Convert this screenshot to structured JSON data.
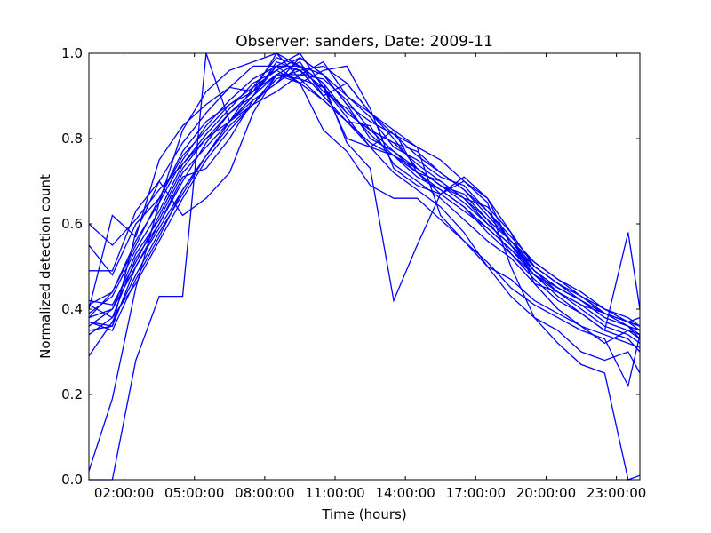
{
  "chart_data": {
    "type": "line",
    "title": "Observer: sanders, Date: 2009-11",
    "xlabel": "Time (hours)",
    "ylabel": "Normalized detection count",
    "xlim": [
      0.5,
      24
    ],
    "ylim": [
      0,
      1
    ],
    "x_ticks": [
      2,
      5,
      8,
      11,
      14,
      17,
      20,
      23
    ],
    "x_tick_labels": [
      "02:00:00",
      "05:00:00",
      "08:00:00",
      "11:00:00",
      "14:00:00",
      "17:00:00",
      "20:00:00",
      "23:00:00"
    ],
    "y_ticks": [
      0,
      0.2,
      0.4,
      0.6,
      0.8,
      1.0
    ],
    "y_tick_labels": [
      "0.0",
      "0.2",
      "0.4",
      "0.6",
      "0.8",
      "1.0"
    ],
    "grid": false,
    "legend": "none",
    "line_color": "#0000ff",
    "x": [
      0.5,
      1.5,
      2.5,
      3.5,
      4.5,
      5.5,
      6.5,
      7.5,
      8.5,
      9.5,
      10.5,
      11.5,
      12.5,
      13.5,
      14.5,
      15.5,
      16.5,
      17.5,
      18.5,
      19.5,
      20.5,
      21.5,
      22.5,
      23.5,
      24
    ],
    "series": [
      {
        "values": [
          0.0,
          0.0,
          0.28,
          0.43,
          0.43,
          1.0,
          0.84,
          0.88,
          0.95,
          0.98,
          0.9,
          0.93,
          0.86,
          0.82,
          0.72,
          0.7,
          0.66,
          0.64,
          0.58,
          0.46,
          0.4,
          0.36,
          0.32,
          0.35,
          0.34
        ]
      },
      {
        "values": [
          0.02,
          0.19,
          0.45,
          0.65,
          0.82,
          0.91,
          0.96,
          0.98,
          1.0,
          0.94,
          0.89,
          0.84,
          0.78,
          0.72,
          0.68,
          0.64,
          0.58,
          0.5,
          0.43,
          0.38,
          0.32,
          0.27,
          0.25,
          0.0,
          0.01
        ]
      },
      {
        "values": [
          0.4,
          0.62,
          0.57,
          0.75,
          0.83,
          0.88,
          0.92,
          0.97,
          0.97,
          1.0,
          0.92,
          0.8,
          0.78,
          0.76,
          0.73,
          0.69,
          0.67,
          0.61,
          0.56,
          0.51,
          0.47,
          0.43,
          0.4,
          0.37,
          0.38
        ]
      },
      {
        "values": [
          0.36,
          0.4,
          0.5,
          0.59,
          0.68,
          0.76,
          0.84,
          0.92,
          0.96,
          0.99,
          0.95,
          0.88,
          0.84,
          0.81,
          0.78,
          0.75,
          0.7,
          0.66,
          0.58,
          0.5,
          0.46,
          0.42,
          0.39,
          0.36,
          0.33
        ]
      },
      {
        "values": [
          0.41,
          0.38,
          0.52,
          0.6,
          0.7,
          0.79,
          0.86,
          0.9,
          0.98,
          0.96,
          0.92,
          0.86,
          0.82,
          0.79,
          0.77,
          0.72,
          0.68,
          0.63,
          0.56,
          0.49,
          0.44,
          0.4,
          0.36,
          0.34,
          0.32
        ]
      },
      {
        "values": [
          0.49,
          0.49,
          0.63,
          0.7,
          0.62,
          0.66,
          0.72,
          0.86,
          0.95,
          0.93,
          0.96,
          0.97,
          0.87,
          0.73,
          0.69,
          0.67,
          0.71,
          0.66,
          0.55,
          0.48,
          0.43,
          0.39,
          0.35,
          0.58,
          0.4
        ]
      },
      {
        "values": [
          0.35,
          0.36,
          0.58,
          0.7,
          0.79,
          0.86,
          0.92,
          0.91,
          1.0,
          0.97,
          0.93,
          0.79,
          0.73,
          0.42,
          0.55,
          0.67,
          0.7,
          0.65,
          0.5,
          0.38,
          0.35,
          0.3,
          0.28,
          0.3,
          0.25
        ]
      },
      {
        "values": [
          0.38,
          0.44,
          0.55,
          0.66,
          0.76,
          0.82,
          0.88,
          0.91,
          0.97,
          0.93,
          0.82,
          0.77,
          0.69,
          0.66,
          0.66,
          0.61,
          0.56,
          0.51,
          0.45,
          0.41,
          0.38,
          0.35,
          0.33,
          0.22,
          0.34
        ]
      },
      {
        "values": [
          0.29,
          0.37,
          0.48,
          0.58,
          0.67,
          0.76,
          0.84,
          0.9,
          0.95,
          0.94,
          0.92,
          0.85,
          0.78,
          0.82,
          0.78,
          0.62,
          0.56,
          0.5,
          0.47,
          0.42,
          0.39,
          0.36,
          0.34,
          0.32,
          0.31
        ]
      },
      {
        "values": [
          0.37,
          0.36,
          0.5,
          0.6,
          0.71,
          0.73,
          0.8,
          0.89,
          0.93,
          0.97,
          0.95,
          0.9,
          0.86,
          0.8,
          0.73,
          0.69,
          0.66,
          0.61,
          0.53,
          0.47,
          0.42,
          0.39,
          0.35,
          0.33,
          0.3
        ]
      },
      {
        "values": [
          0.39,
          0.43,
          0.54,
          0.63,
          0.74,
          0.81,
          0.87,
          0.93,
          0.96,
          0.93,
          0.89,
          0.84,
          0.83,
          0.74,
          0.7,
          0.66,
          0.61,
          0.56,
          0.52,
          0.46,
          0.44,
          0.41,
          0.39,
          0.37,
          0.36
        ]
      },
      {
        "values": [
          0.55,
          0.48,
          0.6,
          0.66,
          0.77,
          0.84,
          0.88,
          0.92,
          0.99,
          0.97,
          0.91,
          0.87,
          0.81,
          0.76,
          0.71,
          0.68,
          0.64,
          0.59,
          0.54,
          0.48,
          0.45,
          0.42,
          0.38,
          0.36,
          0.34
        ]
      },
      {
        "values": [
          0.42,
          0.41,
          0.51,
          0.62,
          0.73,
          0.8,
          0.86,
          0.91,
          0.95,
          0.95,
          0.94,
          0.89,
          0.82,
          0.79,
          0.74,
          0.7,
          0.66,
          0.6,
          0.55,
          0.5,
          0.46,
          0.43,
          0.39,
          0.37,
          0.35
        ]
      },
      {
        "values": [
          0.37,
          0.35,
          0.47,
          0.57,
          0.68,
          0.76,
          0.83,
          0.88,
          0.91,
          0.95,
          0.98,
          0.9,
          0.85,
          0.78,
          0.75,
          0.71,
          0.69,
          0.63,
          0.57,
          0.51,
          0.47,
          0.44,
          0.4,
          0.38,
          0.36
        ]
      },
      {
        "values": [
          0.38,
          0.4,
          0.53,
          0.61,
          0.72,
          0.78,
          0.84,
          0.89,
          0.93,
          0.99,
          0.95,
          0.88,
          0.8,
          0.77,
          0.72,
          0.67,
          0.63,
          0.59,
          0.54,
          0.49,
          0.45,
          0.42,
          0.38,
          0.36,
          0.35
        ]
      },
      {
        "values": [
          0.6,
          0.55,
          0.61,
          0.68,
          0.74,
          0.8,
          0.84,
          0.9,
          0.97,
          0.97,
          0.93,
          0.86,
          0.82,
          0.77,
          0.73,
          0.69,
          0.65,
          0.6,
          0.55,
          0.49,
          0.45,
          0.42,
          0.39,
          0.37,
          0.36
        ]
      },
      {
        "values": [
          0.34,
          0.38,
          0.46,
          0.56,
          0.66,
          0.75,
          0.82,
          0.88,
          0.94,
          0.96,
          0.97,
          0.93,
          0.86,
          0.81,
          0.76,
          0.72,
          0.68,
          0.62,
          0.56,
          0.5,
          0.46,
          0.43,
          0.39,
          0.37,
          0.35
        ]
      },
      {
        "values": [
          0.41,
          0.44,
          0.56,
          0.65,
          0.75,
          0.83,
          0.89,
          0.94,
          0.97,
          0.96,
          0.9,
          0.84,
          0.79,
          0.76,
          0.72,
          0.68,
          0.64,
          0.58,
          0.53,
          0.48,
          0.44,
          0.41,
          0.37,
          0.35,
          0.33
        ]
      }
    ]
  }
}
